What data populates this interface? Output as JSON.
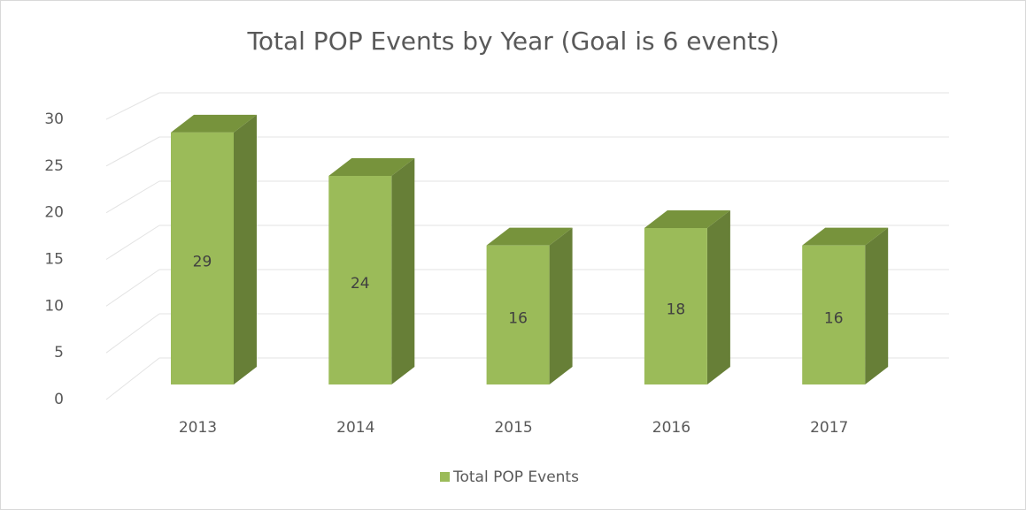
{
  "chart_data": {
    "type": "bar3d",
    "title": "Total POP Events by Year (Goal is 6 events)",
    "categories": [
      "2013",
      "2014",
      "2015",
      "2016",
      "2017"
    ],
    "series": [
      {
        "name": "Total POP Events",
        "color": "#9bbb59",
        "values": [
          29,
          24,
          16,
          18,
          16
        ]
      }
    ],
    "ylim": [
      0,
      30
    ],
    "yticks": [
      0,
      5,
      10,
      15,
      20,
      25,
      30
    ],
    "grid": true,
    "legend": "bottom"
  }
}
